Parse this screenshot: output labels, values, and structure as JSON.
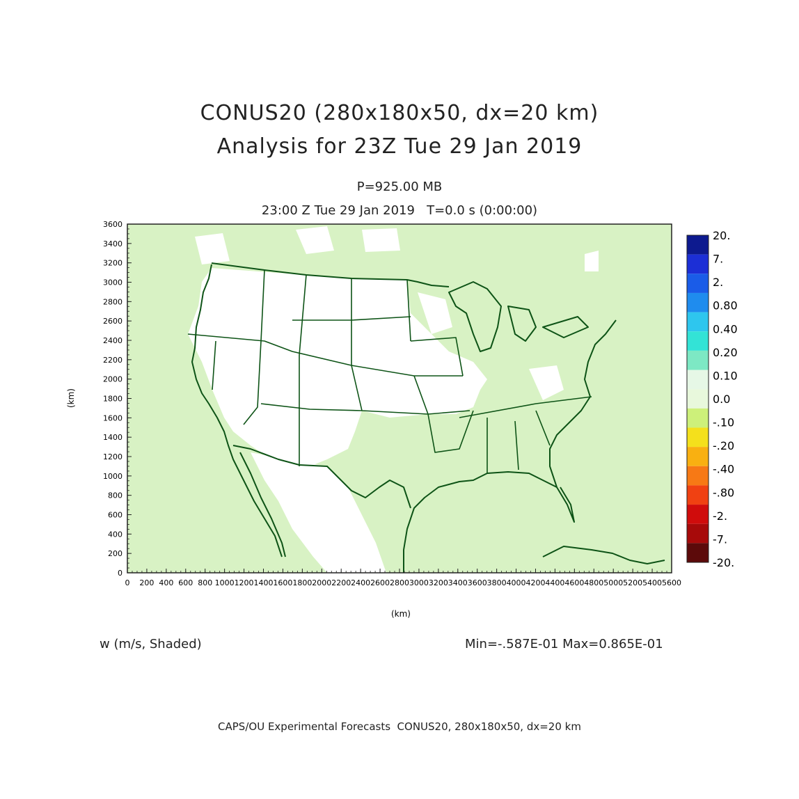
{
  "title_line1": "CONUS20 (280x180x50, dx=20 km)",
  "title_line2": "Analysis for 23Z Tue 29 Jan 2019",
  "level_text": "P=925.00 MB",
  "time_text": "23:00 Z Tue 29 Jan 2019   T=0.0 s (0:00:00)",
  "field_text": "w (m/s, Shaded)",
  "minmax_text": "Min=-.587E-01 Max=0.865E-01",
  "footer_text": "CAPS/OU Experimental Forecasts  CONUS20, 280x180x50, dx=20 km",
  "axes": {
    "xlabel": "(km)",
    "ylabel": "(km)",
    "x_ticks": [
      "0",
      "200",
      "400",
      "600",
      "800",
      "1000",
      "1200",
      "1400",
      "1600",
      "1800",
      "2000",
      "2200",
      "2400",
      "2600",
      "2800",
      "3000",
      "3200",
      "3400",
      "3600",
      "3800",
      "4000",
      "4200",
      "4400",
      "4600",
      "4800",
      "5000",
      "5200",
      "5400",
      "5600"
    ],
    "y_ticks": [
      "0",
      "200",
      "400",
      "600",
      "800",
      "1000",
      "1200",
      "1400",
      "1600",
      "1800",
      "2000",
      "2200",
      "2400",
      "2600",
      "2800",
      "3000",
      "3200",
      "3400",
      "3600"
    ]
  },
  "colors": {
    "background_field": "#d8f2c4",
    "land_neutral": "#ffffff",
    "boundary": "#0d5316"
  },
  "colorbar": {
    "labels": [
      "20.",
      "7.",
      "2.",
      "0.80",
      "0.40",
      "0.20",
      "0.10",
      "0.0",
      "-.10",
      "-.20",
      "-.40",
      "-.80",
      "-2.",
      "-7.",
      "-20."
    ],
    "colors": [
      "#0d1a8f",
      "#1c2fd6",
      "#1a5ce8",
      "#1f8cee",
      "#2ec6ee",
      "#33e3d6",
      "#7de8c4",
      "#e6f7e6",
      "#e8f8dc",
      "#cdf07a",
      "#f4e01c",
      "#f9b011",
      "#f77915",
      "#f04112",
      "#d00c0c",
      "#a70a0a",
      "#5c0a0a"
    ]
  }
}
